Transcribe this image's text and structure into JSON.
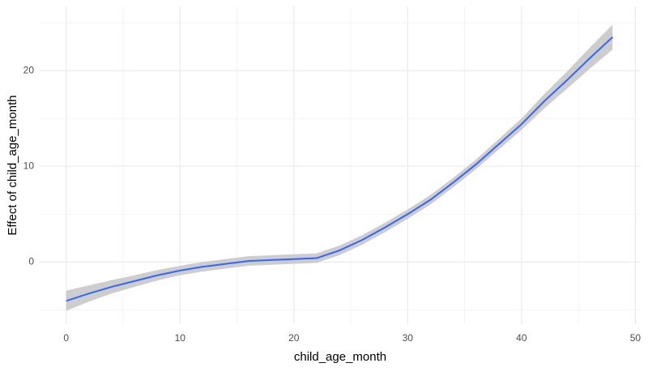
{
  "chart_data": {
    "type": "line",
    "xlabel": "child_age_month",
    "ylabel": "Effect of child_age_month",
    "x": [
      0,
      2,
      4,
      6,
      8,
      10,
      12,
      14,
      16,
      18,
      20,
      22,
      24,
      26,
      28,
      30,
      32,
      34,
      36,
      38,
      40,
      42,
      44,
      46,
      48
    ],
    "values": [
      -4.07,
      -3.3,
      -2.6,
      -2.0,
      -1.4,
      -0.9,
      -0.5,
      -0.2,
      0.1,
      0.2,
      0.3,
      0.4,
      1.2,
      2.3,
      3.6,
      5.0,
      6.5,
      8.3,
      10.2,
      12.3,
      14.4,
      16.8,
      19.0,
      21.3,
      23.5
    ],
    "lower": [
      -5.1,
      -4.15,
      -3.3,
      -2.6,
      -1.95,
      -1.4,
      -1.0,
      -0.7,
      -0.4,
      -0.3,
      -0.2,
      -0.1,
      0.7,
      1.8,
      3.1,
      4.5,
      6.0,
      7.8,
      9.7,
      11.75,
      13.8,
      16.05,
      18.1,
      20.2,
      22.2
    ],
    "upper": [
      -3.0,
      -2.45,
      -1.9,
      -1.4,
      -0.85,
      -0.4,
      0.0,
      0.3,
      0.6,
      0.7,
      0.8,
      0.9,
      1.7,
      2.8,
      4.1,
      5.5,
      7.0,
      8.8,
      10.7,
      12.85,
      15.0,
      17.55,
      19.9,
      22.4,
      24.8
    ],
    "color": "#3366ff",
    "band_color": "#c8c8c8",
    "xlim": [
      -2.4,
      50.4
    ],
    "xticks": [
      0,
      10,
      20,
      30,
      40,
      50
    ],
    "xminor": [
      5,
      15,
      25,
      35,
      45
    ],
    "ylim": [
      -6.5,
      26.7
    ],
    "yticks": [
      0,
      10,
      20
    ],
    "yminor": [
      -5,
      5,
      15,
      25
    ],
    "grid": true
  }
}
